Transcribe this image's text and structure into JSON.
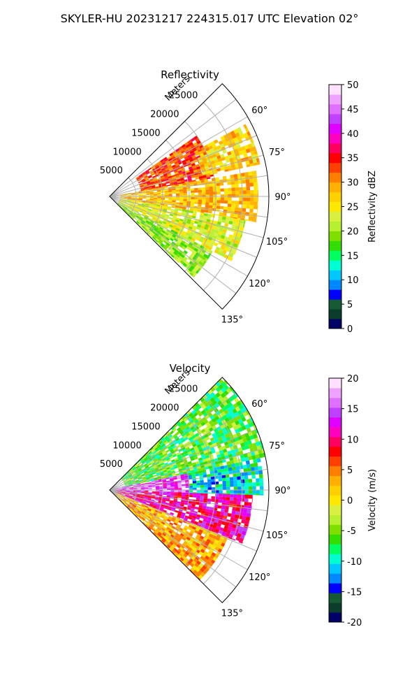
{
  "figure_title": "SKYLER-HU  20231217  224315.017 UTC Elevation 02°",
  "colors": {
    "grid": "#b0b0b0",
    "frame": "#000000",
    "refl_scale": [
      "#000066",
      "#0a3d2e",
      "#145a32",
      "#0000ff",
      "#0088ff",
      "#00c8ff",
      "#00ffd0",
      "#00ff60",
      "#33dd00",
      "#7fe000",
      "#b6f030",
      "#d8f040",
      "#ffe800",
      "#ffd000",
      "#ffb000",
      "#ff8000",
      "#ff4000",
      "#ff0000",
      "#ff0060",
      "#ff00c0",
      "#e000ff",
      "#c040ff",
      "#e070ff",
      "#f0a0ff",
      "#ffe0ff"
    ],
    "vel_scale": [
      "#000066",
      "#0a3d2e",
      "#145a32",
      "#0000ff",
      "#0088ff",
      "#00c8ff",
      "#00ffd0",
      "#00ff60",
      "#33dd00",
      "#7fe000",
      "#b6f030",
      "#d8f040",
      "#ffe800",
      "#ffd000",
      "#ffb000",
      "#ff8000",
      "#ff4000",
      "#ff0000",
      "#ff0060",
      "#ff00c0",
      "#e000ff",
      "#c040ff",
      "#e070ff",
      "#f0a0ff",
      "#ffe0ff"
    ]
  },
  "chart_data": [
    {
      "type": "heatmap",
      "projection": "polar-sector",
      "title": "Reflectivity",
      "range_label": "Meters",
      "range_ticks": [
        "5000",
        "10000",
        "15000",
        "20000",
        "25000"
      ],
      "range_tick_values": [
        5000,
        10000,
        15000,
        20000,
        25000
      ],
      "range_max": 30000,
      "azimuth_ticks": [
        "60°",
        "75°",
        "90°",
        "105°",
        "120°",
        "135°"
      ],
      "azimuth_tick_values": [
        60,
        75,
        90,
        105,
        120,
        135
      ],
      "azimuth_range": [
        45,
        135
      ],
      "colorbar_label": "Reflectivity dBZ",
      "colorbar_ticks": [
        "0",
        "5",
        "10",
        "15",
        "20",
        "25",
        "30",
        "35",
        "40",
        "45",
        "50"
      ],
      "colorbar_range": [
        0,
        50
      ],
      "grid": true,
      "field_regions": [
        {
          "az": [
            55,
            80
          ],
          "r": [
            6000,
            20000
          ],
          "value": 33
        },
        {
          "az": [
            62,
            78
          ],
          "r": [
            18000,
            29000
          ],
          "value": 27
        },
        {
          "az": [
            80,
            100
          ],
          "r": [
            2000,
            28000
          ],
          "value": 28
        },
        {
          "az": [
            100,
            118
          ],
          "r": [
            2000,
            26000
          ],
          "value": 23
        },
        {
          "az": [
            118,
            134
          ],
          "r": [
            2000,
            22000
          ],
          "value": 20
        }
      ]
    },
    {
      "type": "heatmap",
      "projection": "polar-sector",
      "title": "Velocity",
      "range_label": "Meters",
      "range_ticks": [
        "5000",
        "10000",
        "15000",
        "20000",
        "25000"
      ],
      "range_tick_values": [
        5000,
        10000,
        15000,
        20000,
        25000
      ],
      "range_max": 30000,
      "azimuth_ticks": [
        "60°",
        "75°",
        "90°",
        "105°",
        "120°",
        "135°"
      ],
      "azimuth_tick_values": [
        60,
        75,
        90,
        105,
        120,
        135
      ],
      "azimuth_range": [
        45,
        135
      ],
      "colorbar_label": "Velocity (m/s)",
      "colorbar_ticks": [
        "-20",
        "-15",
        "-10",
        "-5",
        "0",
        "5",
        "10",
        "15",
        "20"
      ],
      "colorbar_range": [
        -20,
        20
      ],
      "grid": true,
      "field_regions": [
        {
          "az": [
            45,
            78
          ],
          "r": [
            3000,
            30000
          ],
          "value": -6
        },
        {
          "az": [
            78,
            92
          ],
          "r": [
            1000,
            15000
          ],
          "value": 15
        },
        {
          "az": [
            78,
            92
          ],
          "r": [
            15000,
            29000
          ],
          "value": -10
        },
        {
          "az": [
            92,
            112
          ],
          "r": [
            1000,
            27000
          ],
          "value": 11
        },
        {
          "az": [
            112,
            135
          ],
          "r": [
            1000,
            24000
          ],
          "value": 3
        }
      ]
    }
  ]
}
